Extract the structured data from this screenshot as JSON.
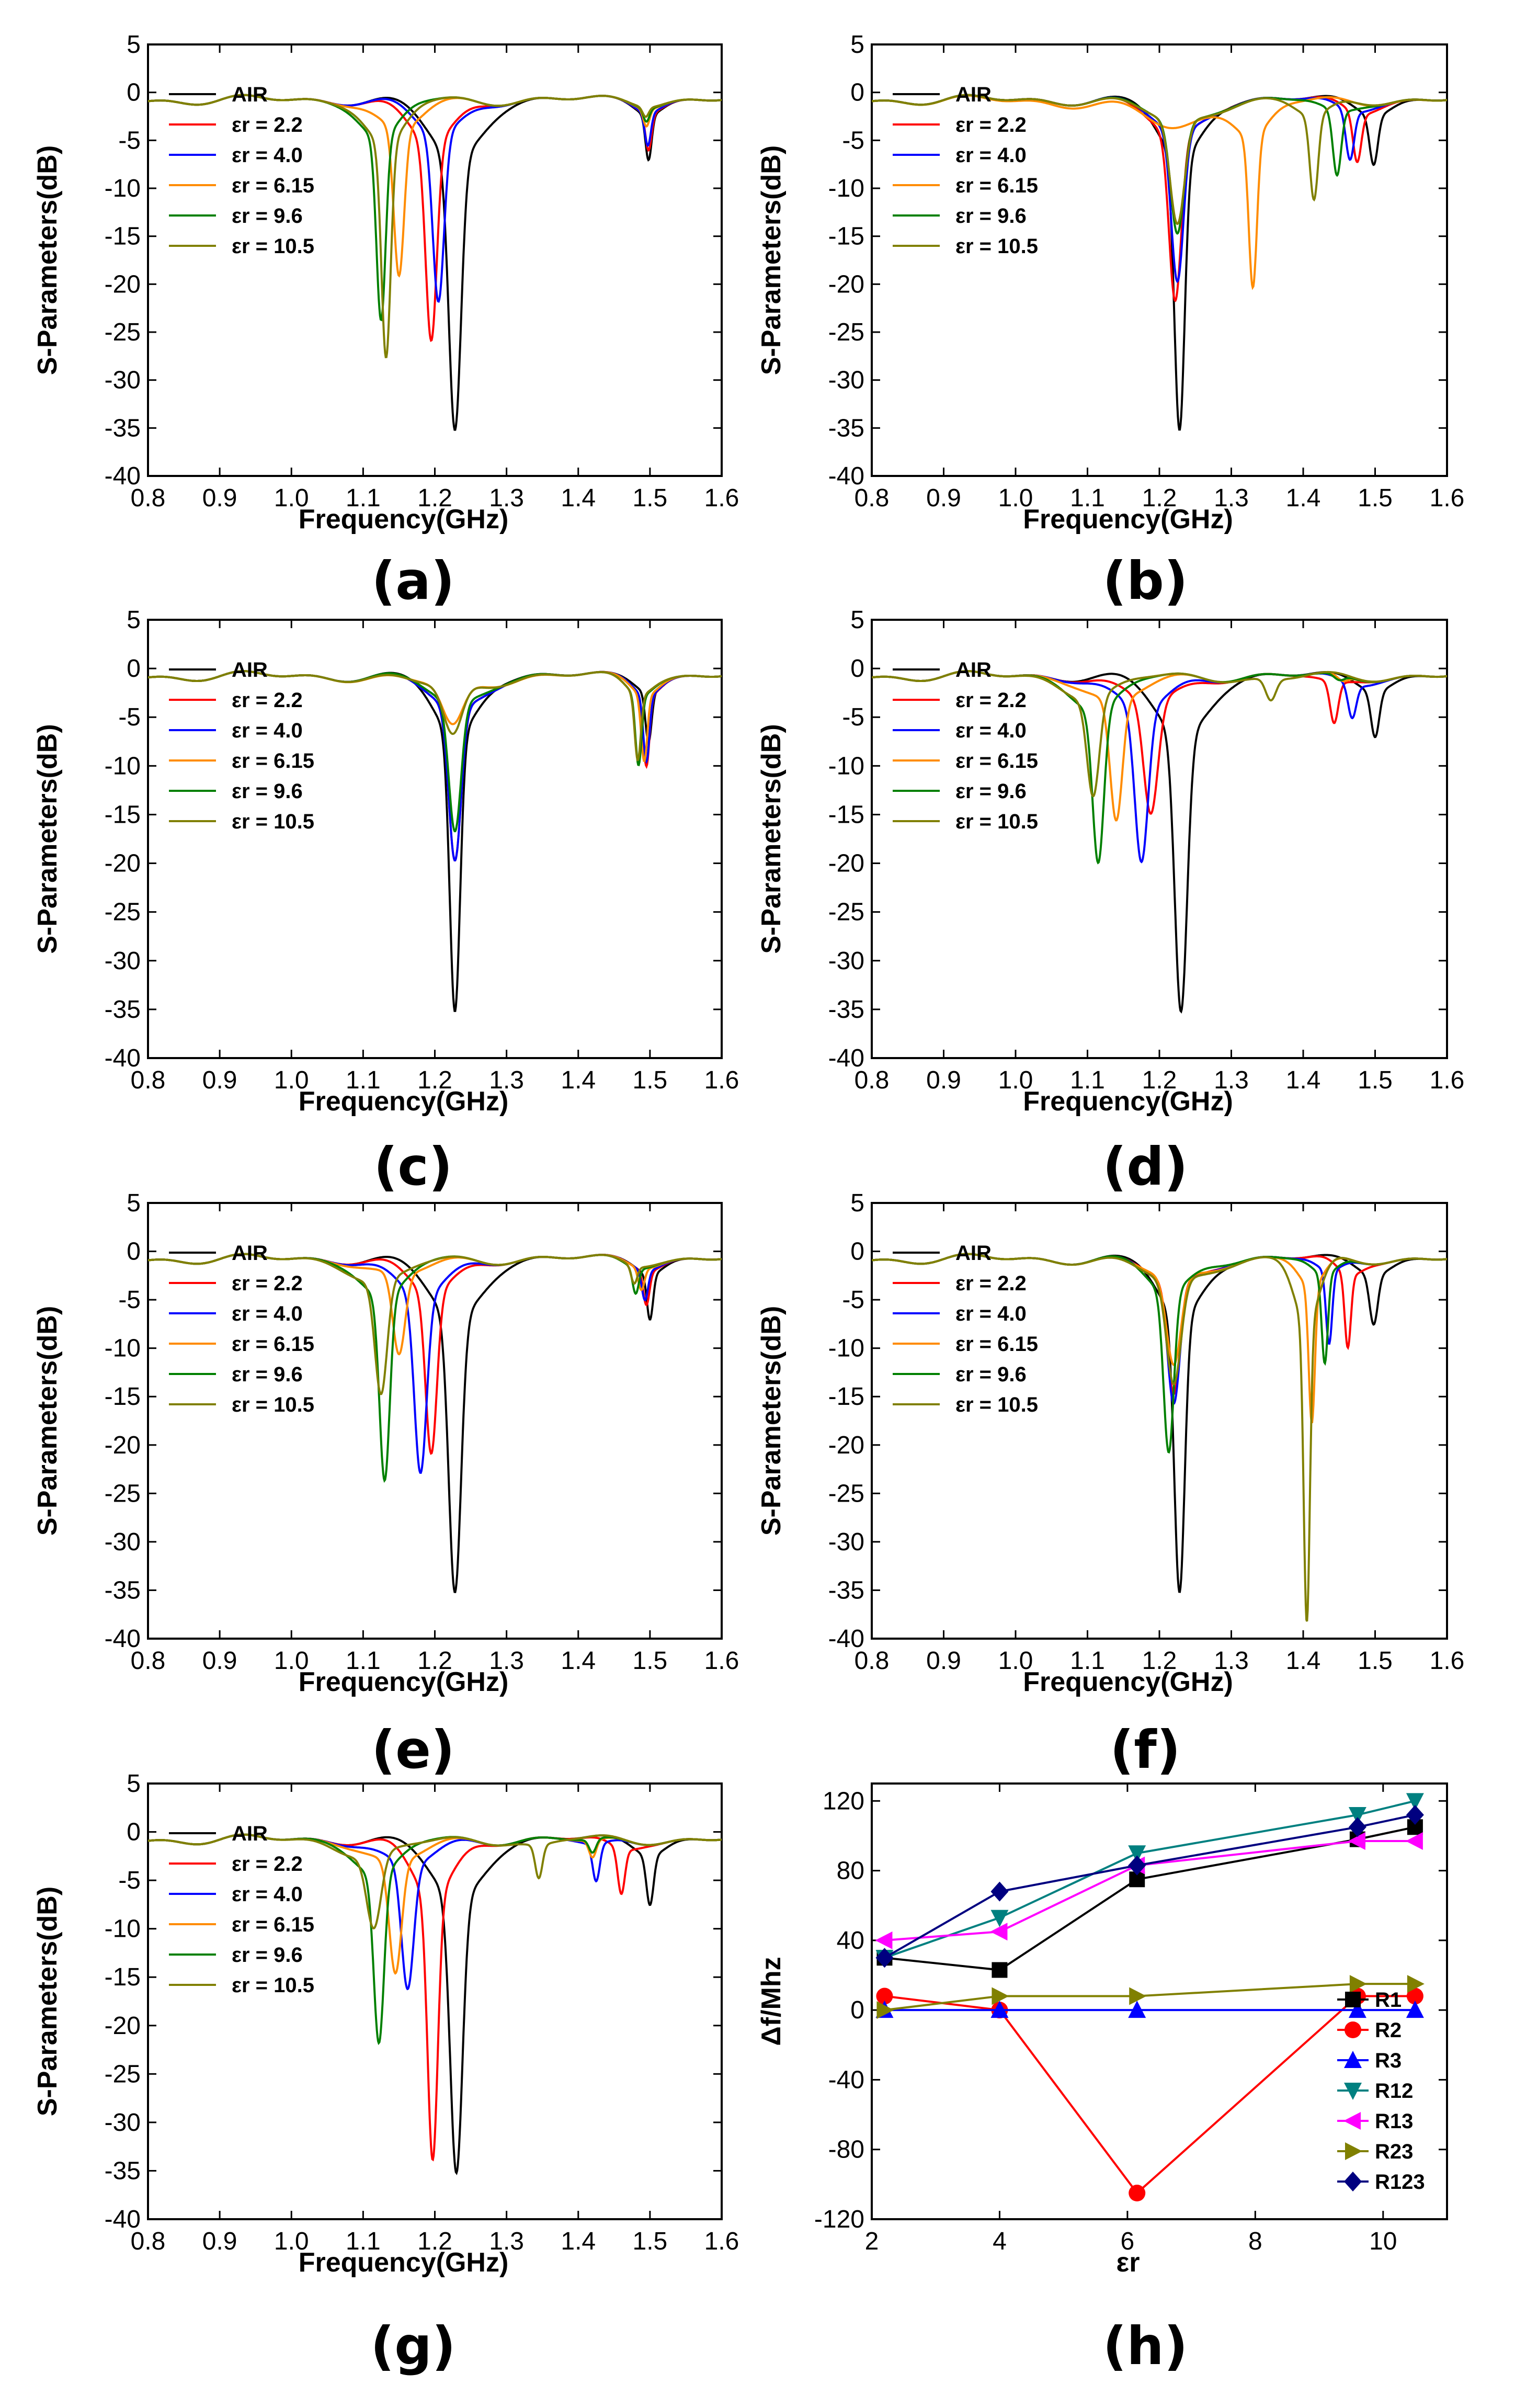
{
  "figure": {
    "description_labels": [
      "(a)",
      "(b)",
      "(c)",
      "(d)",
      "(e)",
      "(f)",
      "(g)",
      "(h)"
    ]
  },
  "chart_data": [
    {
      "panel": "(a)",
      "type": "line",
      "xlabel": "Frequency(GHz)",
      "ylabel": "S-Parameters(dB)",
      "xlim": [
        0.8,
        1.6
      ],
      "ylim": [
        -40,
        5
      ],
      "xticks": [
        "0.8",
        "0.9",
        "1.0",
        "1.1",
        "1.2",
        "1.3",
        "1.4",
        "1.5",
        "1.6"
      ],
      "yticks": [
        "5",
        "0",
        "-5",
        "-10",
        "-15",
        "-20",
        "-25",
        "-30",
        "-35",
        "-40"
      ],
      "series": [
        {
          "name": "AIR",
          "color": "#000000",
          "dips": [
            [
              1.228,
              -35.5,
              0.012
            ],
            [
              1.498,
              -6.5,
              0.006
            ]
          ]
        },
        {
          "name": "εr = 2.2",
          "color": "#ff0000",
          "dips": [
            [
              1.195,
              -26.0,
              0.011
            ],
            [
              1.498,
              -5.5,
              0.006
            ]
          ]
        },
        {
          "name": "εr = 4.0",
          "color": "#0000ff",
          "dips": [
            [
              1.205,
              -22.0,
              0.011
            ],
            [
              1.497,
              -5.0,
              0.006
            ]
          ]
        },
        {
          "name": "εr = 6.15",
          "color": "#ff8c00",
          "dips": [
            [
              1.15,
              -19.5,
              0.01
            ],
            [
              1.495,
              -3.0,
              0.006
            ]
          ]
        },
        {
          "name": "εr = 9.6",
          "color": "#008000",
          "dips": [
            [
              1.125,
              -24.0,
              0.009
            ],
            [
              1.495,
              -2.5,
              0.006
            ]
          ]
        },
        {
          "name": "εr = 10.5",
          "color": "#808000",
          "dips": [
            [
              1.132,
              -28.0,
              0.009
            ],
            [
              1.494,
              -2.0,
              0.006
            ]
          ]
        }
      ]
    },
    {
      "panel": "(b)",
      "type": "line",
      "xlabel": "Frequency(GHz)",
      "ylabel": "S-Parameters(dB)",
      "xlim": [
        0.8,
        1.6
      ],
      "ylim": [
        -40,
        5
      ],
      "xticks": [
        "0.8",
        "0.9",
        "1.0",
        "1.1",
        "1.2",
        "1.3",
        "1.4",
        "1.5",
        "1.6"
      ],
      "yticks": [
        "5",
        "0",
        "-5",
        "-10",
        "-15",
        "-20",
        "-25",
        "-30",
        "-35",
        "-40"
      ],
      "series": [
        {
          "name": "AIR",
          "color": "#000000",
          "dips": [
            [
              1.228,
              -35.5,
              0.01
            ],
            [
              1.498,
              -7.0,
              0.008
            ]
          ]
        },
        {
          "name": "εr = 2.2",
          "color": "#ff0000",
          "dips": [
            [
              1.222,
              -22.0,
              0.012
            ],
            [
              1.475,
              -7.0,
              0.008
            ]
          ]
        },
        {
          "name": "εr = 4.0",
          "color": "#0000ff",
          "dips": [
            [
              1.225,
              -20.0,
              0.012
            ],
            [
              1.465,
              -7.0,
              0.008
            ]
          ]
        },
        {
          "name": "εr = 6.15",
          "color": "#ff8c00",
          "dips": [
            [
              1.22,
              -4.0,
              0.045
            ],
            [
              1.33,
              -20.0,
              0.008
            ]
          ]
        },
        {
          "name": "εr = 9.6",
          "color": "#008000",
          "dips": [
            [
              1.225,
              -15.0,
              0.013
            ],
            [
              1.447,
              -9.0,
              0.008
            ]
          ]
        },
        {
          "name": "εr = 10.5",
          "color": "#808000",
          "dips": [
            [
              1.225,
              -14.0,
              0.014
            ],
            [
              1.415,
              -11.5,
              0.008
            ]
          ]
        }
      ]
    },
    {
      "panel": "(c)",
      "type": "line",
      "xlabel": "Frequency(GHz)",
      "ylabel": "S-Parameters(dB)",
      "xlim": [
        0.8,
        1.6
      ],
      "ylim": [
        -40,
        5
      ],
      "xticks": [
        "0.8",
        "0.9",
        "1.0",
        "1.1",
        "1.2",
        "1.3",
        "1.4",
        "1.5",
        "1.6"
      ],
      "yticks": [
        "5",
        "0",
        "-5",
        "-10",
        "-15",
        "-20",
        "-25",
        "-30",
        "-35",
        "-40"
      ],
      "series": [
        {
          "name": "AIR",
          "color": "#000000",
          "dips": [
            [
              1.228,
              -35.5,
              0.01
            ],
            [
              1.498,
              -7.0,
              0.006
            ]
          ]
        },
        {
          "name": "εr = 2.2",
          "color": "#ff0000",
          "dips": [
            [
              1.228,
              -20.0,
              0.012
            ],
            [
              1.495,
              -9.5,
              0.006
            ]
          ]
        },
        {
          "name": "εr = 4.0",
          "color": "#0000ff",
          "dips": [
            [
              1.228,
              -20.0,
              0.012
            ],
            [
              1.495,
              -9.0,
              0.006
            ]
          ]
        },
        {
          "name": "εr = 6.15",
          "color": "#ff8c00",
          "dips": [
            [
              1.225,
              -6.0,
              0.02
            ],
            [
              1.492,
              -9.0,
              0.006
            ]
          ]
        },
        {
          "name": "εr = 9.6",
          "color": "#008000",
          "dips": [
            [
              1.228,
              -17.0,
              0.012
            ],
            [
              1.484,
              -9.5,
              0.006
            ]
          ]
        },
        {
          "name": "εr = 10.5",
          "color": "#808000",
          "dips": [
            [
              1.225,
              -7.0,
              0.018
            ],
            [
              1.483,
              -9.0,
              0.006
            ]
          ]
        }
      ]
    },
    {
      "panel": "(d)",
      "type": "line",
      "xlabel": "Frequency(GHz)",
      "ylabel": "S-Parameters(dB)",
      "xlim": [
        0.8,
        1.6
      ],
      "ylim": [
        -40,
        5
      ],
      "xticks": [
        "0.8",
        "0.9",
        "1.0",
        "1.1",
        "1.2",
        "1.3",
        "1.4",
        "1.5",
        "1.6"
      ],
      "yticks": [
        "5",
        "0",
        "-5",
        "-10",
        "-15",
        "-20",
        "-25",
        "-30",
        "-35",
        "-40"
      ],
      "series": [
        {
          "name": "AIR",
          "color": "#000000",
          "dips": [
            [
              1.23,
              -35.5,
              0.012
            ],
            [
              1.5,
              -6.5,
              0.008
            ]
          ]
        },
        {
          "name": "εr = 2.2",
          "color": "#ff0000",
          "dips": [
            [
              1.188,
              -15.0,
              0.014
            ],
            [
              1.443,
              -6.0,
              0.008
            ]
          ]
        },
        {
          "name": "εr = 4.0",
          "color": "#0000ff",
          "dips": [
            [
              1.175,
              -20.0,
              0.013
            ],
            [
              1.468,
              -5.0,
              0.008
            ]
          ]
        },
        {
          "name": "εr = 6.15",
          "color": "#ff8c00",
          "dips": [
            [
              1.14,
              -16.0,
              0.012
            ],
            [
              1.455,
              -1.5,
              0.01
            ]
          ]
        },
        {
          "name": "εr = 9.6",
          "color": "#008000",
          "dips": [
            [
              1.115,
              -20.0,
              0.011
            ],
            [
              1.45,
              -1.5,
              0.01
            ]
          ]
        },
        {
          "name": "εr = 10.5",
          "color": "#808000",
          "dips": [
            [
              1.108,
              -13.0,
              0.012
            ],
            [
              1.355,
              -3.5,
              0.01
            ]
          ]
        }
      ]
    },
    {
      "panel": "(e)",
      "type": "line",
      "xlabel": "Frequency(GHz)",
      "ylabel": "S-Parameters(dB)",
      "xlim": [
        0.8,
        1.6
      ],
      "ylim": [
        -40,
        5
      ],
      "xticks": [
        "0.8",
        "0.9",
        "1.0",
        "1.1",
        "1.2",
        "1.3",
        "1.4",
        "1.5",
        "1.6"
      ],
      "yticks": [
        "5",
        "0",
        "-5",
        "-10",
        "-15",
        "-20",
        "-25",
        "-30",
        "-35",
        "-40"
      ],
      "series": [
        {
          "name": "AIR",
          "color": "#000000",
          "dips": [
            [
              1.228,
              -35.5,
              0.012
            ],
            [
              1.5,
              -6.5,
              0.006
            ]
          ]
        },
        {
          "name": "εr = 2.2",
          "color": "#ff0000",
          "dips": [
            [
              1.195,
              -21.0,
              0.011
            ],
            [
              1.495,
              -5.0,
              0.006
            ]
          ]
        },
        {
          "name": "εr = 4.0",
          "color": "#0000ff",
          "dips": [
            [
              1.18,
              -23.0,
              0.012
            ],
            [
              1.493,
              -4.5,
              0.006
            ]
          ]
        },
        {
          "name": "εr = 6.15",
          "color": "#ff8c00",
          "dips": [
            [
              1.15,
              -11.0,
              0.012
            ],
            [
              1.488,
              -3.5,
              0.006
            ]
          ]
        },
        {
          "name": "εr = 9.6",
          "color": "#008000",
          "dips": [
            [
              1.13,
              -24.0,
              0.01
            ],
            [
              1.48,
              -4.0,
              0.006
            ]
          ]
        },
        {
          "name": "εr = 10.5",
          "color": "#808000",
          "dips": [
            [
              1.125,
              -15.0,
              0.012
            ],
            [
              1.478,
              -3.0,
              0.006
            ]
          ]
        }
      ]
    },
    {
      "panel": "(f)",
      "type": "line",
      "xlabel": "Frequency(GHz)",
      "ylabel": "S-Parameters(dB)",
      "xlim": [
        0.8,
        1.6
      ],
      "ylim": [
        -40,
        5
      ],
      "xticks": [
        "0.8",
        "0.9",
        "1.0",
        "1.1",
        "1.2",
        "1.3",
        "1.4",
        "1.5",
        "1.6"
      ],
      "yticks": [
        "5",
        "0",
        "-5",
        "-10",
        "-15",
        "-20",
        "-25",
        "-30",
        "-35",
        "-40"
      ],
      "series": [
        {
          "name": "AIR",
          "color": "#000000",
          "dips": [
            [
              1.228,
              -35.5,
              0.01
            ],
            [
              1.498,
              -7.0,
              0.008
            ]
          ]
        },
        {
          "name": "εr = 2.2",
          "color": "#ff0000",
          "dips": [
            [
              1.22,
              -15.0,
              0.012
            ],
            [
              1.462,
              -10.0,
              0.006
            ]
          ]
        },
        {
          "name": "εr = 4.0",
          "color": "#0000ff",
          "dips": [
            [
              1.22,
              -16.0,
              0.012
            ],
            [
              1.436,
              -10.0,
              0.006
            ]
          ]
        },
        {
          "name": "εr = 6.15",
          "color": "#ff8c00",
          "dips": [
            [
              1.22,
              -12.0,
              0.014
            ],
            [
              1.412,
              -18.0,
              0.006
            ]
          ]
        },
        {
          "name": "εr = 9.6",
          "color": "#008000",
          "dips": [
            [
              1.213,
              -21.0,
              0.01
            ],
            [
              1.43,
              -12.0,
              0.006
            ]
          ]
        },
        {
          "name": "εr = 10.5",
          "color": "#808000",
          "dips": [
            [
              1.22,
              -14.0,
              0.014
            ],
            [
              1.405,
              -38.5,
              0.006
            ]
          ]
        }
      ]
    },
    {
      "panel": "(g)",
      "type": "line",
      "xlabel": "Frequency(GHz)",
      "ylabel": "S-Parameters(dB)",
      "xlim": [
        0.8,
        1.6
      ],
      "ylim": [
        -40,
        5
      ],
      "xticks": [
        "0.8",
        "0.9",
        "1.0",
        "1.1",
        "1.2",
        "1.3",
        "1.4",
        "1.5",
        "1.6"
      ],
      "yticks": [
        "5",
        "0",
        "-5",
        "-10",
        "-15",
        "-20",
        "-25",
        "-30",
        "-35",
        "-40"
      ],
      "series": [
        {
          "name": "AIR",
          "color": "#000000",
          "dips": [
            [
              1.23,
              -35.5,
              0.012
            ],
            [
              1.5,
              -7.0,
              0.007
            ]
          ]
        },
        {
          "name": "εr = 2.2",
          "color": "#ff0000",
          "dips": [
            [
              1.197,
              -34.0,
              0.01
            ],
            [
              1.46,
              -6.5,
              0.007
            ]
          ]
        },
        {
          "name": "εr = 4.0",
          "color": "#0000ff",
          "dips": [
            [
              1.162,
              -16.5,
              0.012
            ],
            [
              1.425,
              -5.5,
              0.007
            ]
          ]
        },
        {
          "name": "εr = 6.15",
          "color": "#ff8c00",
          "dips": [
            [
              1.145,
              -15.0,
              0.012
            ],
            [
              1.42,
              -3.0,
              0.007
            ]
          ]
        },
        {
          "name": "εr = 9.6",
          "color": "#008000",
          "dips": [
            [
              1.122,
              -22.0,
              0.01
            ],
            [
              1.42,
              -2.5,
              0.007
            ]
          ]
        },
        {
          "name": "εr = 10.5",
          "color": "#808000",
          "dips": [
            [
              1.115,
              -10.0,
              0.014
            ],
            [
              1.345,
              -5.0,
              0.007
            ]
          ]
        }
      ]
    },
    {
      "panel": "(h)",
      "type": "line",
      "xlabel": "εr",
      "ylabel": "Δf/Mhz",
      "xlim": [
        2,
        11
      ],
      "ylim": [
        -120,
        130
      ],
      "xticks": [
        "2",
        "4",
        "6",
        "8",
        "10"
      ],
      "yticks": [
        "120",
        "80",
        "40",
        "0",
        "-40",
        "-80",
        "-120"
      ],
      "x": [
        2.2,
        4.0,
        6.15,
        9.6,
        10.5
      ],
      "series": [
        {
          "name": "R1",
          "color": "#000000",
          "marker": "square",
          "values": [
            30,
            23,
            75,
            98,
            105
          ]
        },
        {
          "name": "R2",
          "color": "#ff0000",
          "marker": "circle",
          "values": [
            8,
            0,
            -105,
            8,
            8
          ]
        },
        {
          "name": "R3",
          "color": "#0000ff",
          "marker": "triangle-up",
          "values": [
            0,
            0,
            0,
            0,
            0
          ]
        },
        {
          "name": "R12",
          "color": "#008080",
          "marker": "triangle-down",
          "values": [
            30,
            53,
            90,
            112,
            120
          ]
        },
        {
          "name": "R13",
          "color": "#ff00ff",
          "marker": "triangle-left",
          "values": [
            40,
            45,
            83,
            97,
            97
          ]
        },
        {
          "name": "R23",
          "color": "#808000",
          "marker": "triangle-right",
          "values": [
            0,
            8,
            8,
            15,
            15
          ]
        },
        {
          "name": "R123",
          "color": "#000080",
          "marker": "diamond",
          "values": [
            30,
            68,
            83,
            105,
            112
          ]
        }
      ]
    }
  ]
}
